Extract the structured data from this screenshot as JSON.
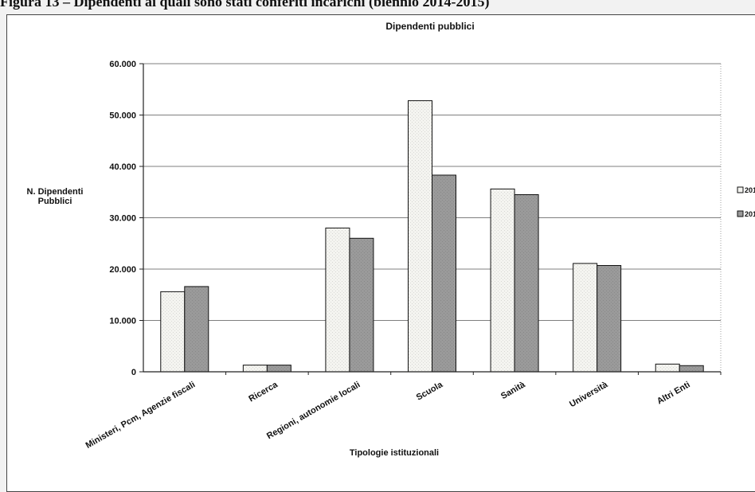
{
  "figure_caption": "Figura 13 – Dipendenti ai quali sono stati conferiti incarichi (biennio 2014-2015)",
  "chart_data": {
    "type": "bar",
    "title": "Dipendenti pubblici",
    "xlabel": "Tipologie istituzionali",
    "ylabel": "N. Dipendenti Pubblici",
    "ylim": [
      0,
      60000
    ],
    "yticks": [
      "0",
      "10.000",
      "20.000",
      "30.000",
      "40.000",
      "50.000",
      "60.000"
    ],
    "categories": [
      "Ministeri, Pcm, Agenzie fiscali",
      "Ricerca",
      "Regioni, autonomie locali",
      "Scuola",
      "Sanità",
      "Università",
      "Altri Enti"
    ],
    "series": [
      {
        "name": "201",
        "color": "#f4f4f0",
        "values": [
          15600,
          1300,
          28000,
          52800,
          35600,
          21100,
          1500
        ]
      },
      {
        "name": "201",
        "color": "#9a9a9a",
        "values": [
          16600,
          1300,
          26000,
          38300,
          34500,
          20700,
          1200
        ]
      }
    ],
    "grid": true,
    "legend": "right"
  }
}
